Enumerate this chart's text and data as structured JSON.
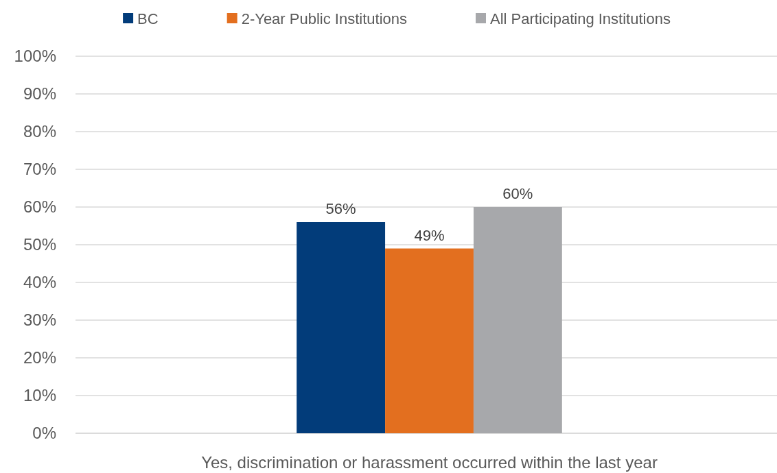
{
  "chart_data": {
    "type": "bar",
    "categories": [
      "Yes, discrimination or harassment occurred within the last year"
    ],
    "series": [
      {
        "name": "BC",
        "color": "#023c7a",
        "values": [
          56
        ],
        "value_labels": [
          "56%"
        ]
      },
      {
        "name": "2-Year Public Institutions",
        "color": "#e36f1f",
        "values": [
          49
        ],
        "value_labels": [
          "49%"
        ]
      },
      {
        "name": "All Participating Institutions",
        "color": "#a7a8ab",
        "values": [
          60
        ],
        "value_labels": [
          "60%"
        ]
      }
    ],
    "ylim": [
      0,
      100
    ],
    "yticks": [
      {
        "value": 0,
        "label": "0%"
      },
      {
        "value": 10,
        "label": "10%"
      },
      {
        "value": 20,
        "label": "20%"
      },
      {
        "value": 30,
        "label": "30%"
      },
      {
        "value": 40,
        "label": "40%"
      },
      {
        "value": 50,
        "label": "50%"
      },
      {
        "value": 60,
        "label": "60%"
      },
      {
        "value": 70,
        "label": "70%"
      },
      {
        "value": 80,
        "label": "80%"
      },
      {
        "value": 90,
        "label": "90%"
      },
      {
        "value": 100,
        "label": "100%"
      }
    ],
    "grid": "y",
    "legend": "top"
  }
}
